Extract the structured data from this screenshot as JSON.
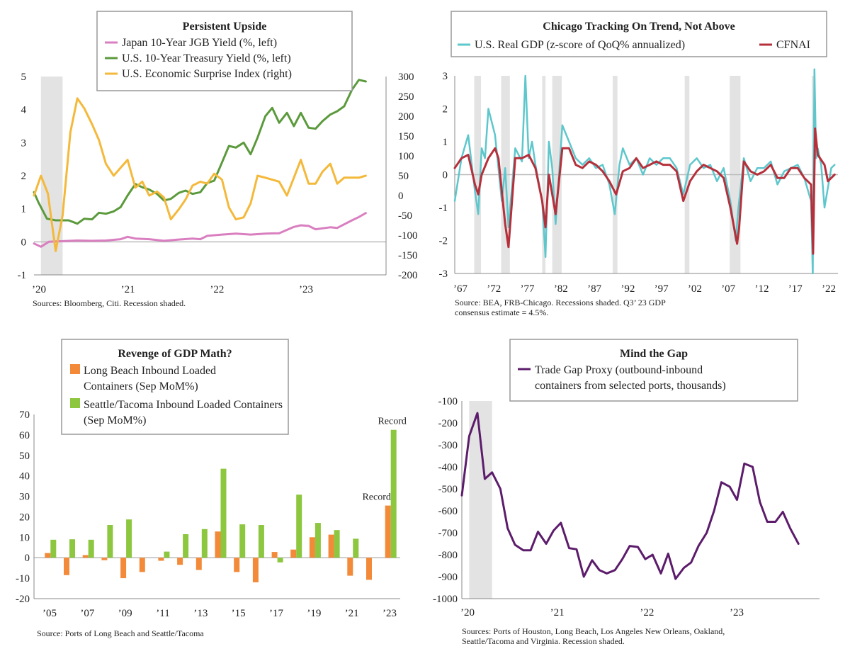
{
  "chart_data": [
    {
      "type": "line",
      "title": "Persistent Upside",
      "source": "Sources: Bloomberg, Citi. Recession shaded.",
      "x_ticks": [
        "’20",
        "’21",
        "’22",
        "’23"
      ],
      "x_range": [
        2020.0,
        2023.9
      ],
      "y_left_ticks": [
        "5",
        "4",
        "3",
        "2",
        "1",
        "0",
        "-1"
      ],
      "y_right_ticks": [
        "300",
        "250",
        "200",
        "150",
        "100",
        "50",
        "0",
        "-50",
        "-100",
        "-150",
        "-200"
      ],
      "ylim_left": [
        -1,
        5
      ],
      "ylim_right": [
        -200,
        300
      ],
      "recession": [
        2020.08,
        2020.33
      ],
      "grid": false,
      "legend_position": "top-center",
      "series": [
        {
          "name": "Japan 10-Year JGB Yield (%, left)",
          "axis": "left",
          "color": "#d97fc0",
          "x": [
            2020.0,
            2020.08,
            2020.17,
            2020.33,
            2020.5,
            2020.67,
            2020.83,
            2021.0,
            2021.08,
            2021.17,
            2021.33,
            2021.5,
            2021.67,
            2021.83,
            2021.92,
            2022.0,
            2022.17,
            2022.33,
            2022.5,
            2022.67,
            2022.83,
            2023.0,
            2023.08,
            2023.17,
            2023.25,
            2023.42,
            2023.5,
            2023.67,
            2023.75,
            2023.83
          ],
          "y": [
            -0.05,
            -0.15,
            0.0,
            0.02,
            0.04,
            0.03,
            0.04,
            0.08,
            0.15,
            0.1,
            0.08,
            0.03,
            0.07,
            0.1,
            0.08,
            0.18,
            0.22,
            0.25,
            0.22,
            0.25,
            0.26,
            0.45,
            0.5,
            0.48,
            0.38,
            0.44,
            0.42,
            0.65,
            0.75,
            0.87
          ]
        },
        {
          "name": "U.S. 10-Year Treasury Yield (%, left)",
          "axis": "left",
          "color": "#5b9a3c",
          "x": [
            2020.0,
            2020.05,
            2020.15,
            2020.25,
            2020.4,
            2020.45,
            2020.5,
            2020.58,
            2020.67,
            2020.75,
            2020.83,
            2020.92,
            2021.0,
            2021.08,
            2021.17,
            2021.25,
            2021.33,
            2021.42,
            2021.5,
            2021.58,
            2021.67,
            2021.75,
            2021.83,
            2021.92,
            2022.0,
            2022.08,
            2022.17,
            2022.25,
            2022.33,
            2022.42,
            2022.5,
            2022.58,
            2022.67,
            2022.75,
            2022.83,
            2022.92,
            2023.0,
            2023.08,
            2023.17,
            2023.25,
            2023.33,
            2023.42,
            2023.5,
            2023.58,
            2023.67,
            2023.75,
            2023.83
          ],
          "y": [
            1.5,
            1.2,
            0.7,
            0.65,
            0.65,
            0.6,
            0.55,
            0.7,
            0.68,
            0.88,
            0.85,
            0.92,
            1.05,
            1.4,
            1.75,
            1.65,
            1.58,
            1.45,
            1.25,
            1.3,
            1.48,
            1.55,
            1.45,
            1.5,
            1.78,
            1.85,
            2.4,
            2.9,
            2.85,
            3.0,
            2.65,
            3.15,
            3.8,
            4.05,
            3.6,
            3.9,
            3.5,
            3.9,
            3.45,
            3.42,
            3.65,
            3.85,
            3.95,
            4.1,
            4.6,
            4.9,
            4.85
          ]
        },
        {
          "name": "U.S. Economic Surprise Index (right)",
          "axis": "right",
          "color": "#f4b93b",
          "x": [
            2020.0,
            2020.08,
            2020.16,
            2020.25,
            2020.33,
            2020.42,
            2020.5,
            2020.58,
            2020.67,
            2020.75,
            2020.83,
            2020.92,
            2021.0,
            2021.08,
            2021.17,
            2021.25,
            2021.33,
            2021.42,
            2021.5,
            2021.58,
            2021.67,
            2021.75,
            2021.83,
            2021.92,
            2022.0,
            2022.08,
            2022.17,
            2022.25,
            2022.33,
            2022.42,
            2022.5,
            2022.58,
            2022.67,
            2022.75,
            2022.83,
            2022.92,
            2023.0,
            2023.08,
            2023.17,
            2023.25,
            2023.33,
            2023.42,
            2023.5,
            2023.58,
            2023.67,
            2023.75,
            2023.83
          ],
          "y": [
            0,
            50,
            5,
            -140,
            -50,
            160,
            245,
            220,
            180,
            140,
            80,
            50,
            70,
            90,
            20,
            35,
            0,
            10,
            -5,
            -60,
            -35,
            -10,
            25,
            35,
            30,
            55,
            40,
            -30,
            -60,
            -55,
            -20,
            50,
            45,
            40,
            35,
            0,
            45,
            90,
            30,
            30,
            60,
            80,
            30,
            45,
            45,
            45,
            50
          ]
        }
      ]
    },
    {
      "type": "line",
      "title": "Chicago Tracking On Trend, Not Above",
      "source": "Source: BEA, FRB-Chicago. Recessions shaded. Q3’ 23 GDP consensus estimate = 4.5%.",
      "x_ticks": [
        "’67",
        "’72",
        "’77",
        "’82",
        "’87",
        "’92",
        "’97",
        "’02",
        "’07",
        "’12",
        "’17",
        "’22"
      ],
      "x_range": [
        1967,
        2024
      ],
      "y_ticks": [
        "3",
        "2",
        "1",
        "0",
        "-1",
        "-2",
        "-3"
      ],
      "ylim": [
        -3,
        3
      ],
      "recessions": [
        [
          1969.9,
          1970.9
        ],
        [
          1973.9,
          1975.2
        ],
        [
          1980.0,
          1980.5
        ],
        [
          1981.5,
          1982.9
        ],
        [
          1990.5,
          1991.2
        ],
        [
          2001.2,
          2001.9
        ],
        [
          2007.9,
          2009.5
        ],
        [
          2020.1,
          2020.4
        ]
      ],
      "grid": false,
      "legend_position": "top",
      "series": [
        {
          "name": "U.S. Real GDP (z-score of QoQ% annualized)",
          "color": "#5ec7cc",
          "x": [
            1967,
            1968,
            1969,
            1970,
            1970.5,
            1971,
            1971.5,
            1972,
            1973,
            1974,
            1974.5,
            1975,
            1976,
            1977,
            1977.5,
            1978,
            1978.5,
            1979,
            1980,
            1980.5,
            1981,
            1981.5,
            1982,
            1983,
            1984,
            1985,
            1986,
            1987,
            1988,
            1989,
            1990,
            1990.8,
            1991.5,
            1992,
            1993,
            1994,
            1995,
            1996,
            1997,
            1998,
            1999,
            2000,
            2001,
            2002,
            2003,
            2004,
            2005,
            2006,
            2007,
            2008,
            2008.8,
            2009.2,
            2010,
            2011,
            2012,
            2013,
            2014,
            2015,
            2016,
            2017,
            2018,
            2019,
            2020,
            2020.25,
            2020.5,
            2020.75,
            2021,
            2021.5,
            2022,
            2022.5,
            2023,
            2023.5
          ],
          "y": [
            -0.8,
            0.5,
            1.2,
            -0.5,
            -1.2,
            0.8,
            0.5,
            2.0,
            1.2,
            -0.8,
            0.2,
            -1.6,
            0.8,
            0.4,
            3.0,
            0.5,
            1.0,
            0.3,
            -0.8,
            -2.5,
            1.0,
            0.2,
            -1.5,
            1.5,
            1.0,
            0.5,
            0.3,
            0.5,
            0.2,
            0.3,
            -0.3,
            -1.2,
            0.3,
            0.8,
            0.3,
            0.5,
            0.0,
            0.5,
            0.3,
            0.5,
            0.5,
            0.2,
            -0.6,
            0.3,
            0.5,
            0.2,
            0.3,
            -0.2,
            0.2,
            -0.8,
            -2.0,
            -1.0,
            0.5,
            -0.2,
            0.2,
            0.2,
            0.4,
            -0.3,
            0.1,
            0.2,
            0.3,
            -0.1,
            -0.8,
            -3.0,
            3.2,
            0.5,
            0.8,
            0.3,
            -1.0,
            -0.4,
            0.2,
            0.3
          ]
        },
        {
          "name": "CFNAI",
          "color": "#b5303b",
          "x": [
            1967,
            1968,
            1969,
            1970,
            1970.5,
            1971,
            1972,
            1973,
            1973.5,
            1974,
            1974.5,
            1975,
            1976,
            1977,
            1978,
            1979,
            1980,
            1980.5,
            1981,
            1982,
            1983,
            1984,
            1985,
            1986,
            1987,
            1988,
            1989,
            1990,
            1991,
            1992,
            1993,
            1994,
            1995,
            1996,
            1997,
            1998,
            1999,
            2000,
            2001,
            2002,
            2003,
            2004,
            2005,
            2006,
            2007,
            2008,
            2009,
            2009.3,
            2010,
            2011,
            2012,
            2013,
            2014,
            2015,
            2016,
            2017,
            2018,
            2019,
            2020,
            2020.3,
            2020.6,
            2021,
            2022,
            2022.5,
            2023,
            2023.5
          ],
          "y": [
            0.2,
            0.5,
            0.6,
            -0.3,
            -0.6,
            0.0,
            0.5,
            0.8,
            0.5,
            -0.5,
            -1.5,
            -2.2,
            0.5,
            0.5,
            0.6,
            0.2,
            -0.8,
            -1.6,
            0.0,
            -1.2,
            0.8,
            0.8,
            0.3,
            0.2,
            0.4,
            0.3,
            0.1,
            -0.2,
            -0.6,
            0.1,
            0.2,
            0.5,
            0.2,
            0.3,
            0.4,
            0.3,
            0.3,
            0.1,
            -0.8,
            -0.2,
            0.1,
            0.3,
            0.2,
            0.1,
            -0.1,
            -1.0,
            -2.1,
            -1.6,
            0.4,
            0.1,
            0.0,
            0.1,
            0.3,
            -0.1,
            -0.1,
            0.2,
            0.2,
            -0.1,
            -0.3,
            -2.4,
            1.4,
            0.6,
            0.3,
            -0.2,
            -0.1,
            0.0
          ]
        }
      ]
    },
    {
      "type": "bar",
      "title": "Revenge of GDP Math?",
      "source": "Source: Ports of Long Beach and Seattle/Tacoma",
      "categories": [
        "2005",
        "2006",
        "2007",
        "2008",
        "2009",
        "2010",
        "2011",
        "2012",
        "2013",
        "2014",
        "2015",
        "2016",
        "2017",
        "2018",
        "2019",
        "2020",
        "2021",
        "2022",
        "2023"
      ],
      "x_ticks": [
        "’05",
        "’07",
        "’09",
        "’11",
        "’13",
        "’15",
        "’17",
        "’19",
        "’21",
        "’23"
      ],
      "y_ticks": [
        "70",
        "60",
        "50",
        "40",
        "30",
        "20",
        "10",
        "0",
        "-10",
        "-20"
      ],
      "ylim": [
        -20,
        70
      ],
      "grid": false,
      "legend_position": "top-left",
      "annotations": [
        "Record",
        "Record"
      ],
      "series": [
        {
          "name": "Long Beach Inbound Loaded Containers (Sep MoM%)",
          "color": "#f28a3a",
          "values": [
            2.3,
            -8.5,
            1.3,
            -1.2,
            -10,
            -7,
            -1.5,
            -3.5,
            -6,
            12.8,
            -7,
            -12,
            2.8,
            4,
            10,
            11.3,
            -8.8,
            -10.8,
            25.5
          ]
        },
        {
          "name": "Seattle/Tacoma Inbound Loaded Containers (Sep MoM%)",
          "color": "#8dc63f",
          "values": [
            8.8,
            9,
            8.8,
            16,
            18.7,
            0,
            3,
            11.5,
            14,
            43.5,
            16.3,
            16,
            -2.3,
            30.8,
            17,
            13.5,
            9.3,
            0,
            62.5
          ]
        }
      ]
    },
    {
      "type": "line",
      "title": "Mind the Gap",
      "source": "Sources: Ports of Houston, Long Beach, Los Angeles New Orleans, Oakland, Seattle/Tacoma and Virginia. Recession shaded.",
      "x_ticks": [
        "’20",
        "’21",
        "’22",
        "’23"
      ],
      "x_range": [
        2020.0,
        2023.9
      ],
      "y_ticks": [
        "-100",
        "-200",
        "-300",
        "-400",
        "-500",
        "-600",
        "-700",
        "-800",
        "-900",
        "-1000"
      ],
      "ylim": [
        -1000,
        -100
      ],
      "recession": [
        2020.08,
        2020.33
      ],
      "grid": false,
      "legend_position": "top-right",
      "series": [
        {
          "name": "Trade Gap Proxy (outbound-inbound containers from selected ports, thousands)",
          "color": "#5c1c6b",
          "x": [
            2020.0,
            2020.08,
            2020.17,
            2020.25,
            2020.33,
            2020.42,
            2020.5,
            2020.58,
            2020.67,
            2020.75,
            2020.83,
            2020.92,
            2021.0,
            2021.08,
            2021.17,
            2021.25,
            2021.33,
            2021.42,
            2021.5,
            2021.58,
            2021.67,
            2021.75,
            2021.83,
            2021.92,
            2022.0,
            2022.08,
            2022.17,
            2022.25,
            2022.33,
            2022.42,
            2022.5,
            2022.58,
            2022.67,
            2022.75,
            2022.83,
            2022.92,
            2023.0,
            2023.08,
            2023.17,
            2023.25,
            2023.33,
            2023.42,
            2023.5,
            2023.58,
            2023.67
          ],
          "y": [
            -530,
            -260,
            -155,
            -455,
            -425,
            -500,
            -680,
            -755,
            -780,
            -780,
            -695,
            -750,
            -690,
            -655,
            -770,
            -775,
            -900,
            -825,
            -870,
            -885,
            -870,
            -820,
            -760,
            -765,
            -820,
            -800,
            -885,
            -795,
            -910,
            -860,
            -835,
            -760,
            -700,
            -600,
            -470,
            -490,
            -550,
            -385,
            -400,
            -560,
            -650,
            -650,
            -605,
            -680,
            -750
          ]
        }
      ]
    }
  ]
}
